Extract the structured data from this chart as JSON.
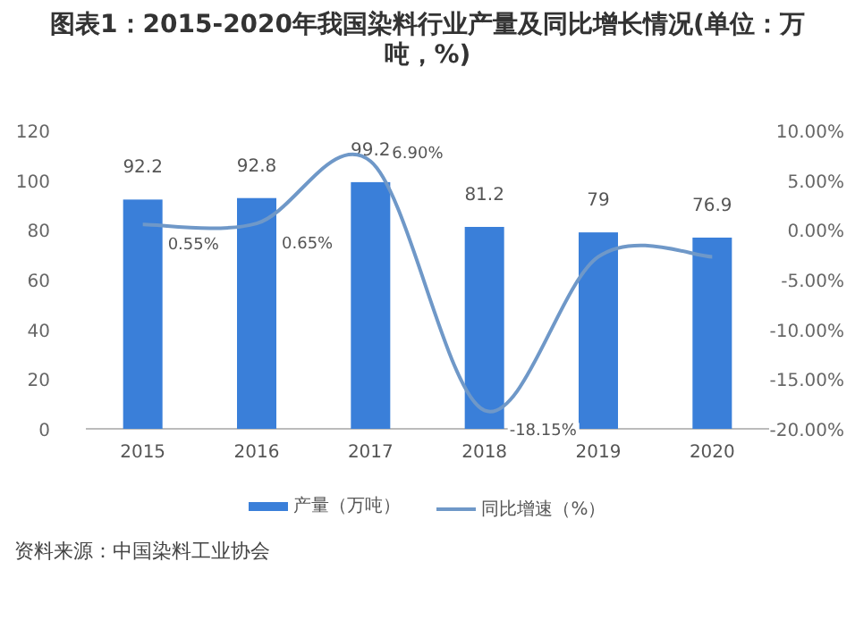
{
  "chart_data": {
    "type": "bar",
    "title": "图表1：2015-2020年我国染料行业产量及同比增长情况(单位：万吨，%)",
    "categories": [
      "2015",
      "2016",
      "2017",
      "2018",
      "2019",
      "2020"
    ],
    "series": [
      {
        "name": "产量（万吨）",
        "color": "#3a7fd9",
        "values": [
          92.2,
          92.8,
          99.2,
          81.2,
          79,
          76.9
        ],
        "value_labels": [
          "92.2",
          "92.8",
          "99.2",
          "81.2",
          "79",
          "76.9"
        ]
      },
      {
        "name": "同比增速（%）",
        "type": "line",
        "axis": "y2",
        "color": "#6f98c8",
        "values": [
          0.55,
          0.65,
          6.9,
          -18.15,
          -2.7,
          -2.7
        ],
        "value_labels": [
          "0.55%",
          "0.65%",
          "6.90%",
          "-18.15%",
          null,
          null
        ]
      }
    ],
    "ylim": [
      0,
      120
    ],
    "yticks": [
      0,
      20,
      40,
      60,
      80,
      100,
      120
    ],
    "y2lim": [
      -20,
      10
    ],
    "y2ticks": [
      {
        "value": -20,
        "label": "-20.00%"
      },
      {
        "value": -15,
        "label": "-15.00%"
      },
      {
        "value": -10,
        "label": "-10.00%"
      },
      {
        "value": -5,
        "label": "-5.00%"
      },
      {
        "value": 0,
        "label": "0.00%"
      },
      {
        "value": 5,
        "label": "5.00%"
      },
      {
        "value": 10,
        "label": "10.00%"
      }
    ],
    "legend": "bottom",
    "annotations": [
      "资料来源：中国染料工业协会"
    ]
  }
}
